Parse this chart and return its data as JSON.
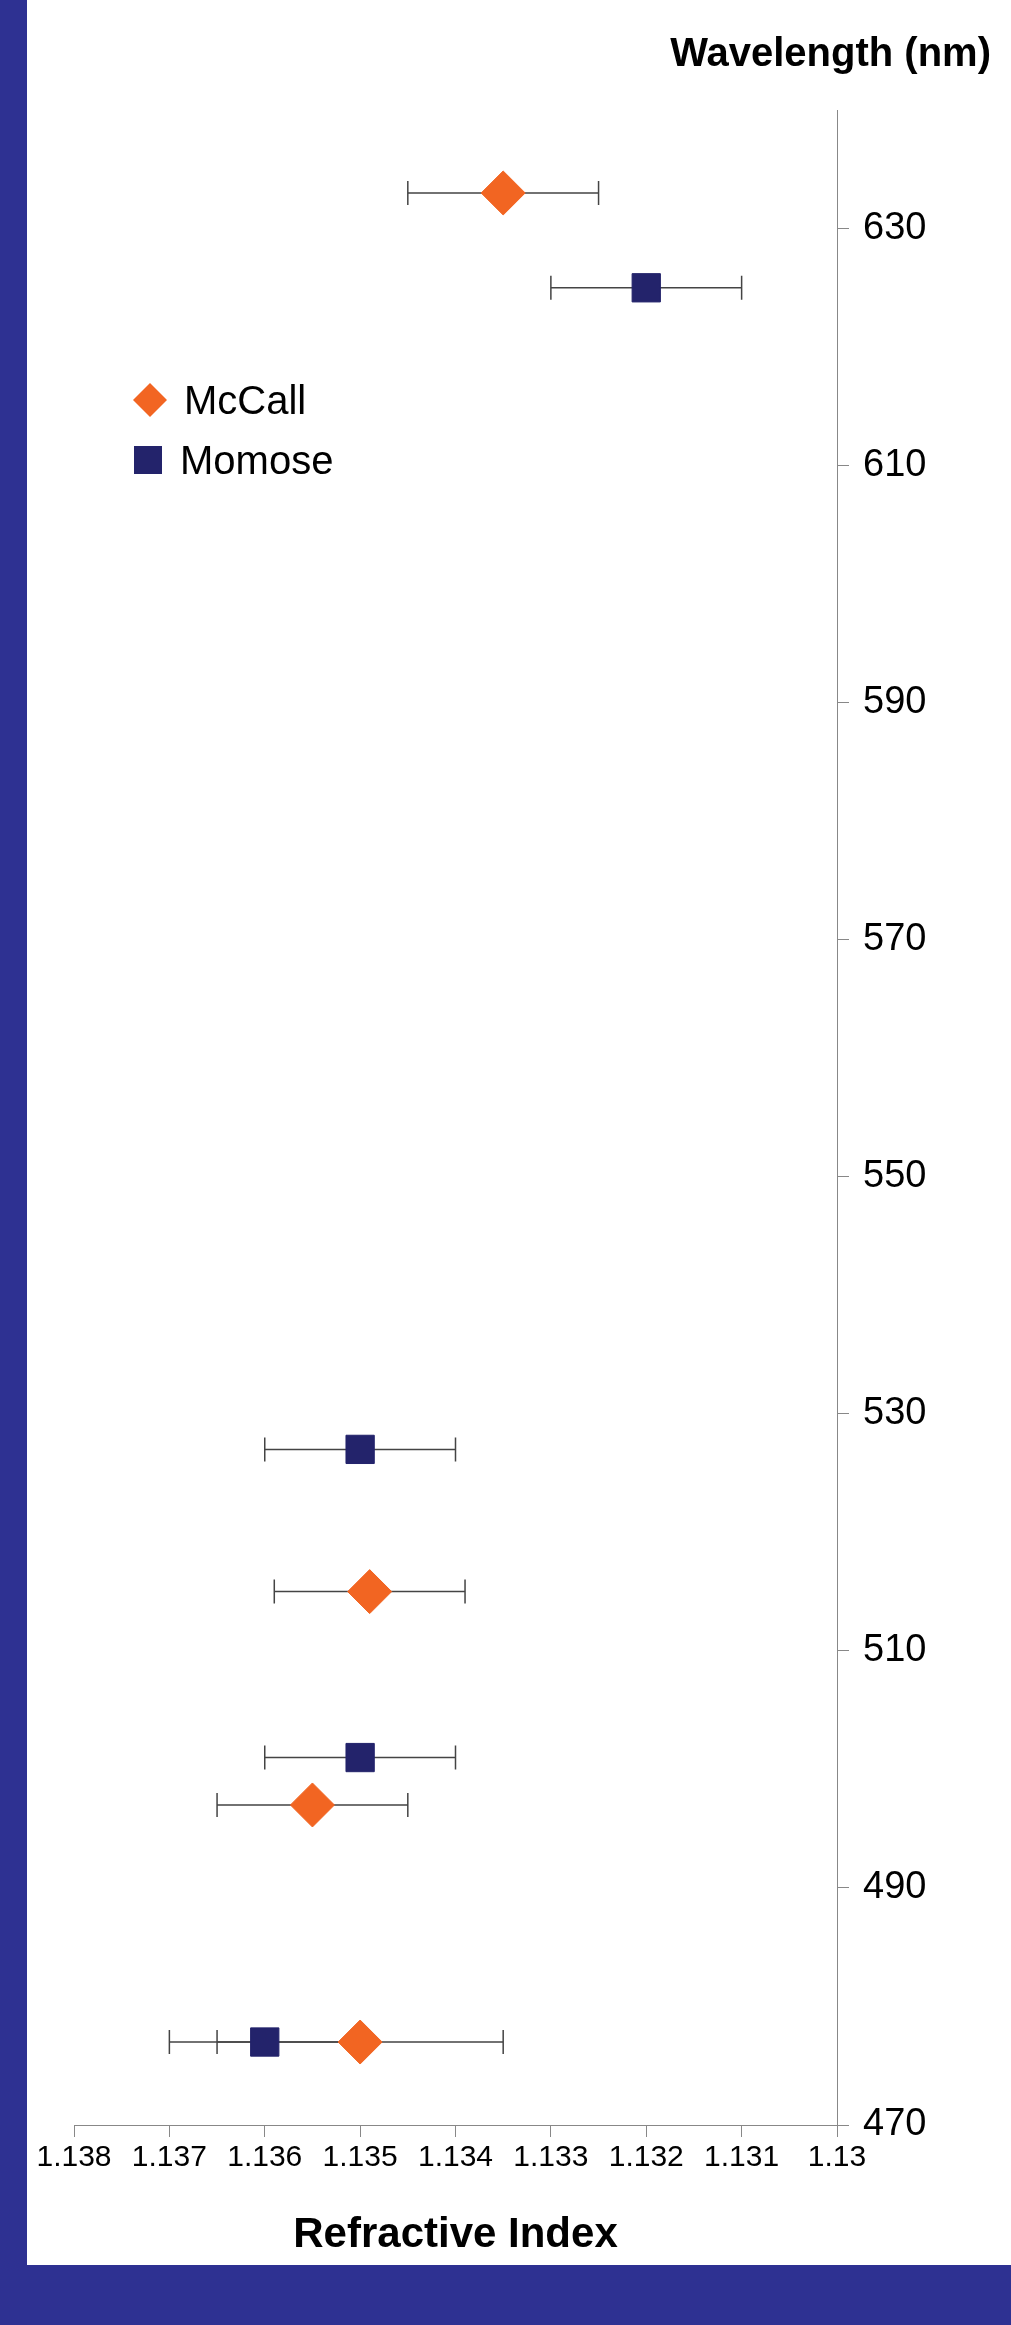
{
  "chart_data": {
    "type": "scatter",
    "xlabel": "Refractive Index",
    "ylabel": "Wavelength (nm)",
    "xlim": [
      1.138,
      1.13
    ],
    "xticks": [
      1.138,
      1.137,
      1.136,
      1.135,
      1.134,
      1.133,
      1.132,
      1.131,
      1.13
    ],
    "ylim": [
      470,
      640
    ],
    "yticks": [
      470,
      490,
      510,
      530,
      550,
      570,
      590,
      610,
      630
    ],
    "grid": false,
    "legend": "top left",
    "series": [
      {
        "name": "McCall",
        "color": "#f26522",
        "marker": "diamond",
        "x": [
          1.135,
          1.1355,
          1.1349,
          1.1335
        ],
        "values": [
          477,
          497,
          515,
          633
        ],
        "xerrors": [
          0.0015,
          0.001,
          0.001,
          0.001
        ]
      },
      {
        "name": "Momose",
        "color": "#23236b",
        "marker": "square",
        "x": [
          1.136,
          1.135,
          1.135,
          1.132
        ],
        "values": [
          477,
          501,
          527,
          625
        ],
        "xerrors": [
          0.001,
          0.001,
          0.001,
          0.001
        ]
      }
    ]
  }
}
